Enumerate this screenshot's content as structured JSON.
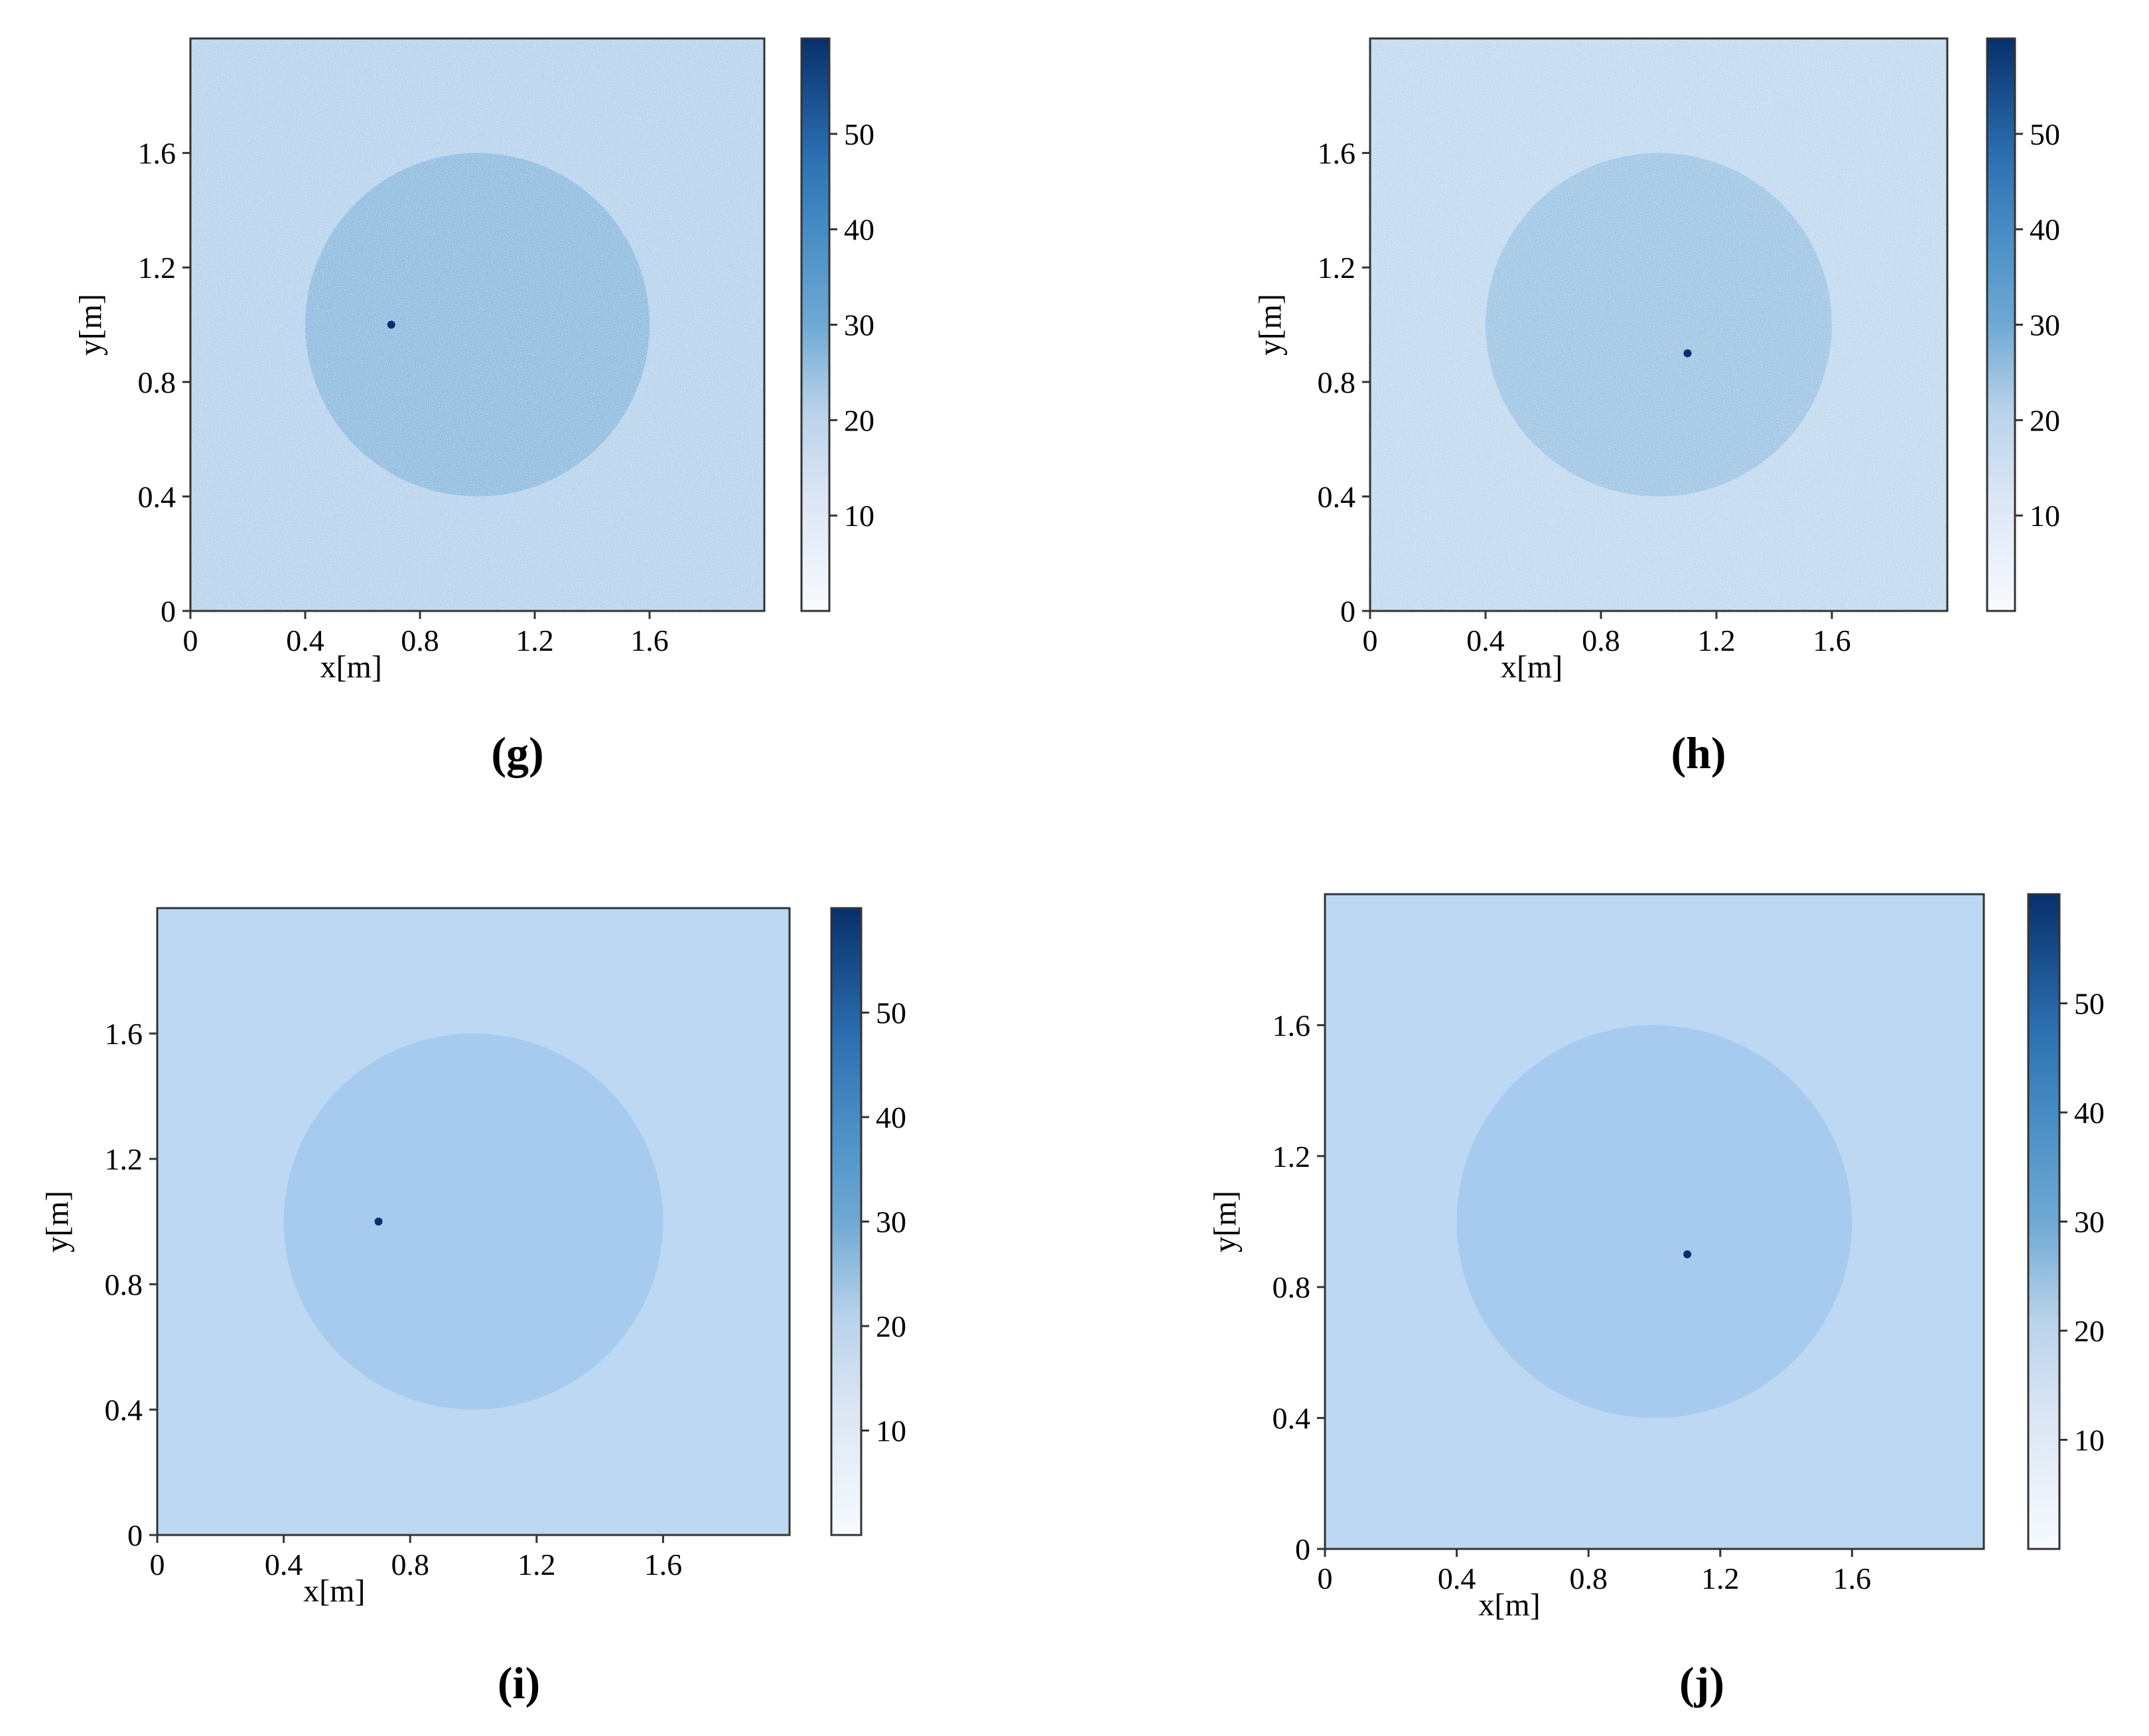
{
  "panels": [
    {
      "caption": "(g)"
    },
    {
      "caption": "(h)"
    },
    {
      "caption": "(i)"
    },
    {
      "caption": "(j)"
    }
  ],
  "chart_data": [
    {
      "type": "heatmap",
      "panel": "(g)",
      "title": "",
      "xlabel": "x[m]",
      "ylabel": "y[m]",
      "xlim": [
        0,
        2.0
      ],
      "ylim": [
        0,
        2.0
      ],
      "xticks": [
        "0",
        "0.4",
        "0.8",
        "1.2",
        "1.6"
      ],
      "yticks": [
        "0",
        "0.4",
        "0.8",
        "1.2",
        "1.6"
      ],
      "colorbar": {
        "range": [
          0,
          60
        ],
        "ticks": [
          "10",
          "20",
          "30",
          "40",
          "50"
        ],
        "colormap": "Blues"
      },
      "background_level": 17,
      "texture": "noisy",
      "inclusion": {
        "shape": "circle",
        "center_x": 1.0,
        "center_y": 1.0,
        "radius": 0.6,
        "level": 26
      },
      "marker": {
        "x": 0.7,
        "y": 1.0,
        "level": 58
      },
      "colors": {
        "background": "#b9d4ec",
        "inclusion": "#8ab9dd",
        "marker": "#08306b"
      }
    },
    {
      "type": "heatmap",
      "panel": "(h)",
      "title": "",
      "xlabel": "x[m]",
      "ylabel": "y[m]",
      "xlim": [
        0,
        2.0
      ],
      "ylim": [
        0,
        2.0
      ],
      "xticks": [
        "0",
        "0.4",
        "0.8",
        "1.2",
        "1.6"
      ],
      "yticks": [
        "0",
        "0.4",
        "0.8",
        "1.2",
        "1.6"
      ],
      "colorbar": {
        "range": [
          0,
          60
        ],
        "ticks": [
          "10",
          "20",
          "30",
          "40",
          "50"
        ],
        "colormap": "Blues"
      },
      "background_level": 16,
      "texture": "noisy",
      "inclusion": {
        "shape": "circle",
        "center_x": 1.0,
        "center_y": 1.0,
        "radius": 0.6,
        "level": 24
      },
      "marker": {
        "x": 1.1,
        "y": 0.9,
        "level": 58
      },
      "colors": {
        "background": "#c4dbef",
        "inclusion": "#9cc4e3",
        "marker": "#08306b"
      }
    },
    {
      "type": "heatmap",
      "panel": "(i)",
      "title": "",
      "xlabel": "x[m]",
      "ylabel": "y[m]",
      "xlim": [
        0,
        2.0
      ],
      "ylim": [
        0,
        2.0
      ],
      "xticks": [
        "0",
        "0.4",
        "0.8",
        "1.2",
        "1.6"
      ],
      "yticks": [
        "0",
        "0.4",
        "0.8",
        "1.2",
        "1.6"
      ],
      "colorbar": {
        "range": [
          0,
          60
        ],
        "ticks": [
          "10",
          "20",
          "30",
          "40",
          "50"
        ],
        "colormap": "Blues"
      },
      "background_level": 15,
      "texture": "smooth",
      "inclusion": {
        "shape": "circle",
        "center_x": 1.0,
        "center_y": 1.0,
        "radius": 0.6,
        "level": 20
      },
      "marker": {
        "x": 0.7,
        "y": 1.0,
        "level": 58
      },
      "colors": {
        "background": "#bcd8f3",
        "inclusion": "#a6cbee",
        "marker": "#08306b"
      }
    },
    {
      "type": "heatmap",
      "panel": "(j)",
      "title": "",
      "xlabel": "x[m]",
      "ylabel": "y[m]",
      "xlim": [
        0,
        2.0
      ],
      "ylim": [
        0,
        2.0
      ],
      "xticks": [
        "0",
        "0.4",
        "0.8",
        "1.2",
        "1.6"
      ],
      "yticks": [
        "0",
        "0.4",
        "0.8",
        "1.2",
        "1.6"
      ],
      "colorbar": {
        "range": [
          0,
          60
        ],
        "ticks": [
          "10",
          "20",
          "30",
          "40",
          "50"
        ],
        "colormap": "Blues"
      },
      "background_level": 15,
      "texture": "smooth",
      "inclusion": {
        "shape": "circle",
        "center_x": 1.0,
        "center_y": 1.0,
        "radius": 0.6,
        "level": 20
      },
      "marker": {
        "x": 1.1,
        "y": 0.9,
        "level": 58
      },
      "colors": {
        "background": "#bcd8f3",
        "inclusion": "#a6cbee",
        "marker": "#08306b"
      }
    }
  ]
}
